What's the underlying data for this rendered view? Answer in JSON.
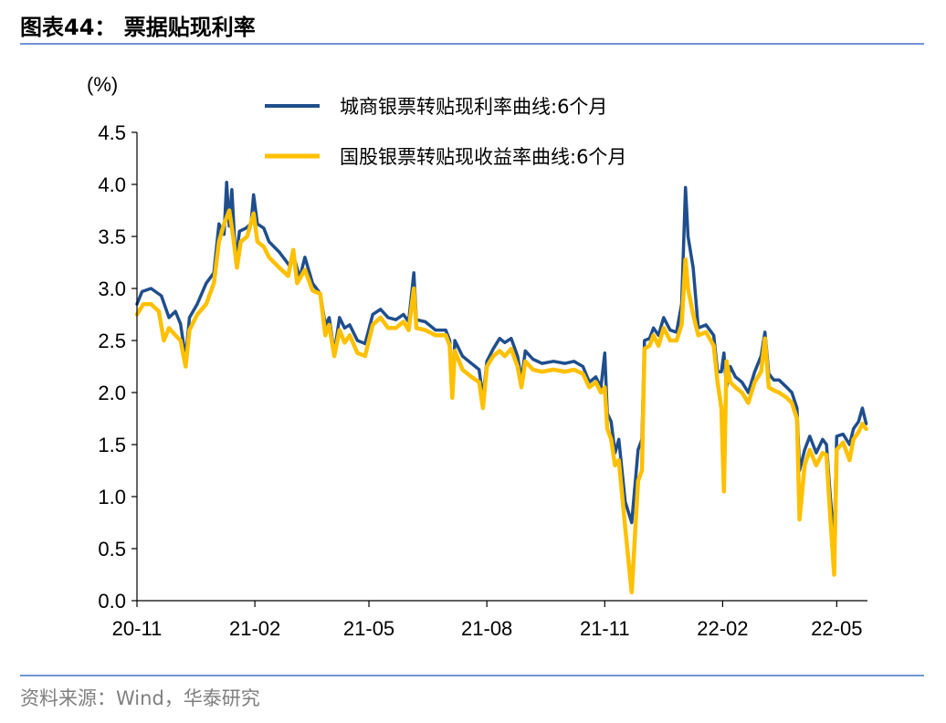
{
  "page": {
    "title": "图表44：  票据贴现利率",
    "source": "资料来源：Wind，华泰研究"
  },
  "colors": {
    "series1": "#1f4e8c",
    "series2": "#ffc000",
    "rule": "#4472c4",
    "axis": "#000000"
  },
  "chart_data": {
    "type": "line",
    "ylabel": "(%)",
    "ylim": [
      0,
      4.5
    ],
    "yticks": [
      "0.0",
      "0.5",
      "1.0",
      "1.5",
      "2.0",
      "2.5",
      "3.0",
      "3.5",
      "4.0",
      "4.5"
    ],
    "xlim": [
      "2020-11-01",
      "2022-05-25"
    ],
    "xticks": [
      {
        "label": "20-11",
        "date": "2020-11-01"
      },
      {
        "label": "21-02",
        "date": "2021-02-01"
      },
      {
        "label": "21-05",
        "date": "2021-05-01"
      },
      {
        "label": "21-08",
        "date": "2021-08-01"
      },
      {
        "label": "21-11",
        "date": "2021-11-01"
      },
      {
        "label": "22-02",
        "date": "2022-02-01"
      },
      {
        "label": "22-05",
        "date": "2022-05-01"
      }
    ],
    "grid": false,
    "legend_position": "top",
    "series": [
      {
        "name": "城商银票转贴现利率曲线:6个月",
        "color": "#1f4e8c",
        "points": [
          [
            "2020-11-01",
            2.85
          ],
          [
            "2020-11-05",
            2.97
          ],
          [
            "2020-11-12",
            3.0
          ],
          [
            "2020-11-20",
            2.93
          ],
          [
            "2020-11-26",
            2.72
          ],
          [
            "2020-12-01",
            2.78
          ],
          [
            "2020-12-05",
            2.66
          ],
          [
            "2020-12-09",
            2.33
          ],
          [
            "2020-12-12",
            2.72
          ],
          [
            "2020-12-18",
            2.85
          ],
          [
            "2020-12-25",
            3.05
          ],
          [
            "2020-12-31",
            3.15
          ],
          [
            "2021-01-04",
            3.62
          ],
          [
            "2021-01-08",
            3.52
          ],
          [
            "2021-01-10",
            4.02
          ],
          [
            "2021-01-12",
            3.6
          ],
          [
            "2021-01-14",
            3.95
          ],
          [
            "2021-01-17",
            3.27
          ],
          [
            "2021-01-20",
            3.55
          ],
          [
            "2021-01-25",
            3.58
          ],
          [
            "2021-01-29",
            3.62
          ],
          [
            "2021-01-31",
            3.9
          ],
          [
            "2021-02-03",
            3.62
          ],
          [
            "2021-02-08",
            3.58
          ],
          [
            "2021-02-12",
            3.45
          ],
          [
            "2021-02-20",
            3.35
          ],
          [
            "2021-02-28",
            3.22
          ],
          [
            "2021-03-04",
            3.28
          ],
          [
            "2021-03-08",
            3.1
          ],
          [
            "2021-03-12",
            3.3
          ],
          [
            "2021-03-18",
            3.05
          ],
          [
            "2021-03-24",
            2.95
          ],
          [
            "2021-03-28",
            2.65
          ],
          [
            "2021-03-31",
            2.72
          ],
          [
            "2021-04-04",
            2.38
          ],
          [
            "2021-04-08",
            2.72
          ],
          [
            "2021-04-12",
            2.62
          ],
          [
            "2021-04-16",
            2.65
          ],
          [
            "2021-04-22",
            2.5
          ],
          [
            "2021-04-28",
            2.47
          ],
          [
            "2021-05-04",
            2.75
          ],
          [
            "2021-05-10",
            2.8
          ],
          [
            "2021-05-16",
            2.72
          ],
          [
            "2021-05-22",
            2.7
          ],
          [
            "2021-05-28",
            2.75
          ],
          [
            "2021-06-01",
            2.68
          ],
          [
            "2021-06-05",
            3.15
          ],
          [
            "2021-06-07",
            2.7
          ],
          [
            "2021-06-14",
            2.68
          ],
          [
            "2021-06-22",
            2.6
          ],
          [
            "2021-06-30",
            2.6
          ],
          [
            "2021-07-03",
            2.5
          ],
          [
            "2021-07-05",
            2.0
          ],
          [
            "2021-07-07",
            2.5
          ],
          [
            "2021-07-13",
            2.35
          ],
          [
            "2021-07-20",
            2.28
          ],
          [
            "2021-07-26",
            2.22
          ],
          [
            "2021-07-29",
            1.95
          ],
          [
            "2021-08-01",
            2.3
          ],
          [
            "2021-08-06",
            2.42
          ],
          [
            "2021-08-11",
            2.52
          ],
          [
            "2021-08-15",
            2.48
          ],
          [
            "2021-08-20",
            2.52
          ],
          [
            "2021-08-25",
            2.35
          ],
          [
            "2021-08-28",
            2.12
          ],
          [
            "2021-08-31",
            2.4
          ],
          [
            "2021-09-06",
            2.32
          ],
          [
            "2021-09-13",
            2.28
          ],
          [
            "2021-09-22",
            2.3
          ],
          [
            "2021-10-01",
            2.28
          ],
          [
            "2021-10-08",
            2.3
          ],
          [
            "2021-10-15",
            2.25
          ],
          [
            "2021-10-20",
            2.1
          ],
          [
            "2021-10-25",
            2.15
          ],
          [
            "2021-10-29",
            2.05
          ],
          [
            "2021-11-01",
            2.38
          ],
          [
            "2021-11-03",
            1.8
          ],
          [
            "2021-11-06",
            1.72
          ],
          [
            "2021-11-09",
            1.42
          ],
          [
            "2021-11-12",
            1.55
          ],
          [
            "2021-11-17",
            0.95
          ],
          [
            "2021-11-22",
            0.75
          ],
          [
            "2021-11-27",
            1.45
          ],
          [
            "2021-11-30",
            1.55
          ],
          [
            "2021-12-02",
            2.5
          ],
          [
            "2021-12-06",
            2.52
          ],
          [
            "2021-12-09",
            2.62
          ],
          [
            "2021-12-13",
            2.55
          ],
          [
            "2021-12-17",
            2.72
          ],
          [
            "2021-12-22",
            2.6
          ],
          [
            "2021-12-27",
            2.58
          ],
          [
            "2021-12-31",
            2.85
          ],
          [
            "2022-01-03",
            3.97
          ],
          [
            "2022-01-05",
            3.5
          ],
          [
            "2022-01-09",
            3.2
          ],
          [
            "2022-01-13",
            2.62
          ],
          [
            "2022-01-19",
            2.65
          ],
          [
            "2022-01-25",
            2.55
          ],
          [
            "2022-01-28",
            2.2
          ],
          [
            "2022-01-31",
            2.2
          ],
          [
            "2022-02-02",
            2.38
          ],
          [
            "2022-02-04",
            2.05
          ],
          [
            "2022-02-07",
            2.25
          ],
          [
            "2022-02-11",
            2.15
          ],
          [
            "2022-02-16",
            2.1
          ],
          [
            "2022-02-21",
            2.0
          ],
          [
            "2022-02-26",
            2.2
          ],
          [
            "2022-03-03",
            2.35
          ],
          [
            "2022-03-06",
            2.58
          ],
          [
            "2022-03-09",
            2.18
          ],
          [
            "2022-03-13",
            2.12
          ],
          [
            "2022-03-17",
            2.12
          ],
          [
            "2022-03-23",
            2.05
          ],
          [
            "2022-03-27",
            2.0
          ],
          [
            "2022-03-31",
            1.85
          ],
          [
            "2022-04-02",
            1.25
          ],
          [
            "2022-04-06",
            1.45
          ],
          [
            "2022-04-10",
            1.58
          ],
          [
            "2022-04-15",
            1.42
          ],
          [
            "2022-04-20",
            1.55
          ],
          [
            "2022-04-23",
            1.5
          ],
          [
            "2022-04-26",
            1.0
          ],
          [
            "2022-04-29",
            0.55
          ],
          [
            "2022-05-01",
            1.58
          ],
          [
            "2022-05-06",
            1.6
          ],
          [
            "2022-05-11",
            1.5
          ],
          [
            "2022-05-14",
            1.65
          ],
          [
            "2022-05-18",
            1.72
          ],
          [
            "2022-05-21",
            1.85
          ],
          [
            "2022-05-24",
            1.7
          ]
        ]
      },
      {
        "name": "国股银票转贴现收益率曲线:6个月",
        "color": "#ffc000",
        "points": [
          [
            "2020-11-01",
            2.75
          ],
          [
            "2020-11-06",
            2.85
          ],
          [
            "2020-11-12",
            2.85
          ],
          [
            "2020-11-18",
            2.78
          ],
          [
            "2020-11-22",
            2.5
          ],
          [
            "2020-11-26",
            2.62
          ],
          [
            "2020-12-01",
            2.55
          ],
          [
            "2020-12-05",
            2.5
          ],
          [
            "2020-12-09",
            2.25
          ],
          [
            "2020-12-12",
            2.6
          ],
          [
            "2020-12-18",
            2.75
          ],
          [
            "2020-12-25",
            2.85
          ],
          [
            "2020-12-31",
            3.05
          ],
          [
            "2021-01-04",
            3.45
          ],
          [
            "2021-01-08",
            3.62
          ],
          [
            "2021-01-12",
            3.75
          ],
          [
            "2021-01-15",
            3.5
          ],
          [
            "2021-01-18",
            3.2
          ],
          [
            "2021-01-21",
            3.45
          ],
          [
            "2021-01-26",
            3.5
          ],
          [
            "2021-01-31",
            3.72
          ],
          [
            "2021-02-03",
            3.45
          ],
          [
            "2021-02-08",
            3.4
          ],
          [
            "2021-02-12",
            3.3
          ],
          [
            "2021-02-20",
            3.2
          ],
          [
            "2021-02-27",
            3.12
          ],
          [
            "2021-03-03",
            3.37
          ],
          [
            "2021-03-06",
            3.05
          ],
          [
            "2021-03-12",
            3.18
          ],
          [
            "2021-03-18",
            2.98
          ],
          [
            "2021-03-24",
            2.95
          ],
          [
            "2021-03-28",
            2.55
          ],
          [
            "2021-03-31",
            2.65
          ],
          [
            "2021-04-04",
            2.35
          ],
          [
            "2021-04-08",
            2.6
          ],
          [
            "2021-04-12",
            2.48
          ],
          [
            "2021-04-16",
            2.55
          ],
          [
            "2021-04-22",
            2.38
          ],
          [
            "2021-04-28",
            2.35
          ],
          [
            "2021-05-04",
            2.65
          ],
          [
            "2021-05-10",
            2.72
          ],
          [
            "2021-05-16",
            2.62
          ],
          [
            "2021-05-22",
            2.62
          ],
          [
            "2021-05-28",
            2.68
          ],
          [
            "2021-06-01",
            2.6
          ],
          [
            "2021-06-05",
            3.0
          ],
          [
            "2021-06-07",
            2.62
          ],
          [
            "2021-06-14",
            2.6
          ],
          [
            "2021-06-22",
            2.55
          ],
          [
            "2021-06-30",
            2.55
          ],
          [
            "2021-07-03",
            2.45
          ],
          [
            "2021-07-05",
            1.95
          ],
          [
            "2021-07-07",
            2.4
          ],
          [
            "2021-07-13",
            2.22
          ],
          [
            "2021-07-20",
            2.15
          ],
          [
            "2021-07-26",
            2.1
          ],
          [
            "2021-07-29",
            1.85
          ],
          [
            "2021-08-01",
            2.25
          ],
          [
            "2021-08-06",
            2.35
          ],
          [
            "2021-08-11",
            2.4
          ],
          [
            "2021-08-15",
            2.35
          ],
          [
            "2021-08-20",
            2.42
          ],
          [
            "2021-08-25",
            2.25
          ],
          [
            "2021-08-28",
            2.05
          ],
          [
            "2021-08-31",
            2.3
          ],
          [
            "2021-09-06",
            2.22
          ],
          [
            "2021-09-13",
            2.2
          ],
          [
            "2021-09-22",
            2.22
          ],
          [
            "2021-10-01",
            2.2
          ],
          [
            "2021-10-08",
            2.22
          ],
          [
            "2021-10-15",
            2.18
          ],
          [
            "2021-10-20",
            2.05
          ],
          [
            "2021-10-25",
            2.1
          ],
          [
            "2021-10-29",
            2.0
          ],
          [
            "2021-11-01",
            2.05
          ],
          [
            "2021-11-03",
            1.65
          ],
          [
            "2021-11-06",
            1.55
          ],
          [
            "2021-11-09",
            1.3
          ],
          [
            "2021-11-12",
            1.35
          ],
          [
            "2021-11-17",
            0.7
          ],
          [
            "2021-11-22",
            0.08
          ],
          [
            "2021-11-27",
            1.15
          ],
          [
            "2021-11-30",
            1.25
          ],
          [
            "2021-12-02",
            2.42
          ],
          [
            "2021-12-06",
            2.45
          ],
          [
            "2021-12-09",
            2.55
          ],
          [
            "2021-12-13",
            2.45
          ],
          [
            "2021-12-17",
            2.62
          ],
          [
            "2021-12-22",
            2.5
          ],
          [
            "2021-12-27",
            2.5
          ],
          [
            "2021-12-31",
            2.65
          ],
          [
            "2022-01-03",
            3.28
          ],
          [
            "2022-01-05",
            3.0
          ],
          [
            "2022-01-09",
            2.75
          ],
          [
            "2022-01-13",
            2.55
          ],
          [
            "2022-01-19",
            2.58
          ],
          [
            "2022-01-25",
            2.45
          ],
          [
            "2022-01-28",
            2.1
          ],
          [
            "2022-01-31",
            1.85
          ],
          [
            "2022-02-02",
            1.05
          ],
          [
            "2022-02-04",
            2.3
          ],
          [
            "2022-02-07",
            2.1
          ],
          [
            "2022-02-11",
            2.05
          ],
          [
            "2022-02-16",
            2.0
          ],
          [
            "2022-02-21",
            1.9
          ],
          [
            "2022-02-26",
            2.1
          ],
          [
            "2022-03-03",
            2.2
          ],
          [
            "2022-03-06",
            2.52
          ],
          [
            "2022-03-09",
            2.05
          ],
          [
            "2022-03-13",
            2.02
          ],
          [
            "2022-03-17",
            2.0
          ],
          [
            "2022-03-23",
            1.95
          ],
          [
            "2022-03-27",
            1.9
          ],
          [
            "2022-03-31",
            1.75
          ],
          [
            "2022-04-02",
            0.78
          ],
          [
            "2022-04-06",
            1.3
          ],
          [
            "2022-04-10",
            1.45
          ],
          [
            "2022-04-15",
            1.3
          ],
          [
            "2022-04-20",
            1.42
          ],
          [
            "2022-04-23",
            1.4
          ],
          [
            "2022-04-26",
            0.8
          ],
          [
            "2022-04-29",
            0.25
          ],
          [
            "2022-05-01",
            1.45
          ],
          [
            "2022-05-06",
            1.52
          ],
          [
            "2022-05-11",
            1.35
          ],
          [
            "2022-05-14",
            1.55
          ],
          [
            "2022-05-18",
            1.62
          ],
          [
            "2022-05-21",
            1.7
          ],
          [
            "2022-05-24",
            1.65
          ]
        ]
      }
    ]
  }
}
